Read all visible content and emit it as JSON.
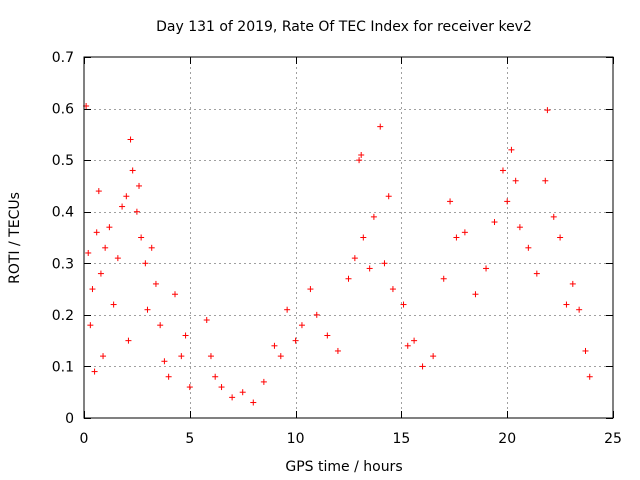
{
  "chart_data": {
    "type": "scatter",
    "title": "Day 131 of 2019, Rate Of TEC Index for receiver kev2",
    "xlabel": "GPS time / hours",
    "ylabel": "ROTI / TECUs",
    "xlim": [
      0,
      25
    ],
    "ylim": [
      0,
      0.7
    ],
    "xticks": [
      0,
      5,
      10,
      15,
      20,
      25
    ],
    "yticks": [
      0,
      0.1,
      0.2,
      0.3,
      0.4,
      0.5,
      0.6,
      0.7
    ],
    "xtick_labels": [
      "0",
      "5",
      "10",
      "15",
      "20",
      "25"
    ],
    "ytick_labels": [
      "0",
      "0.1",
      "0.2",
      "0.3",
      "0.4",
      "0.5",
      "0.6",
      "0.7"
    ],
    "grid": true,
    "marker": "+",
    "marker_color": "#ff0000",
    "series": [
      {
        "name": "kev2 ROTI",
        "points": [
          [
            0.1,
            0.605
          ],
          [
            0.2,
            0.32
          ],
          [
            0.3,
            0.18
          ],
          [
            0.4,
            0.25
          ],
          [
            0.5,
            0.09
          ],
          [
            0.6,
            0.36
          ],
          [
            0.7,
            0.44
          ],
          [
            0.8,
            0.28
          ],
          [
            0.9,
            0.12
          ],
          [
            1.0,
            0.33
          ],
          [
            1.2,
            0.37
          ],
          [
            1.4,
            0.22
          ],
          [
            1.6,
            0.31
          ],
          [
            1.8,
            0.41
          ],
          [
            2.0,
            0.43
          ],
          [
            2.1,
            0.15
          ],
          [
            2.2,
            0.54
          ],
          [
            2.3,
            0.48
          ],
          [
            2.5,
            0.4
          ],
          [
            2.6,
            0.45
          ],
          [
            2.7,
            0.35
          ],
          [
            2.9,
            0.3
          ],
          [
            3.0,
            0.21
          ],
          [
            3.2,
            0.33
          ],
          [
            3.4,
            0.26
          ],
          [
            3.6,
            0.18
          ],
          [
            3.8,
            0.11
          ],
          [
            4.0,
            0.08
          ],
          [
            4.3,
            0.24
          ],
          [
            4.6,
            0.12
          ],
          [
            4.8,
            0.16
          ],
          [
            5.0,
            0.06
          ],
          [
            5.8,
            0.19
          ],
          [
            6.0,
            0.12
          ],
          [
            6.2,
            0.08
          ],
          [
            6.5,
            0.06
          ],
          [
            7.0,
            0.04
          ],
          [
            7.5,
            0.05
          ],
          [
            8.0,
            0.03
          ],
          [
            8.5,
            0.07
          ],
          [
            9.0,
            0.14
          ],
          [
            9.3,
            0.12
          ],
          [
            9.6,
            0.21
          ],
          [
            10.0,
            0.15
          ],
          [
            10.3,
            0.18
          ],
          [
            10.7,
            0.25
          ],
          [
            11.0,
            0.2
          ],
          [
            11.5,
            0.16
          ],
          [
            12.0,
            0.13
          ],
          [
            12.5,
            0.27
          ],
          [
            12.8,
            0.31
          ],
          [
            13.0,
            0.5
          ],
          [
            13.1,
            0.51
          ],
          [
            13.2,
            0.35
          ],
          [
            13.5,
            0.29
          ],
          [
            13.7,
            0.39
          ],
          [
            14.0,
            0.565
          ],
          [
            14.2,
            0.3
          ],
          [
            14.4,
            0.43
          ],
          [
            14.6,
            0.25
          ],
          [
            15.1,
            0.22
          ],
          [
            15.3,
            0.14
          ],
          [
            15.6,
            0.15
          ],
          [
            16.0,
            0.1
          ],
          [
            16.5,
            0.12
          ],
          [
            17.0,
            0.27
          ],
          [
            17.3,
            0.42
          ],
          [
            17.6,
            0.35
          ],
          [
            18.0,
            0.36
          ],
          [
            18.5,
            0.24
          ],
          [
            19.0,
            0.29
          ],
          [
            19.4,
            0.38
          ],
          [
            19.8,
            0.48
          ],
          [
            20.0,
            0.42
          ],
          [
            20.2,
            0.52
          ],
          [
            20.4,
            0.46
          ],
          [
            20.6,
            0.37
          ],
          [
            21.0,
            0.33
          ],
          [
            21.4,
            0.28
          ],
          [
            21.8,
            0.46
          ],
          [
            21.9,
            0.597
          ],
          [
            22.2,
            0.39
          ],
          [
            22.5,
            0.35
          ],
          [
            22.8,
            0.22
          ],
          [
            23.1,
            0.26
          ],
          [
            23.4,
            0.21
          ],
          [
            23.7,
            0.13
          ],
          [
            23.9,
            0.08
          ]
        ]
      }
    ]
  }
}
